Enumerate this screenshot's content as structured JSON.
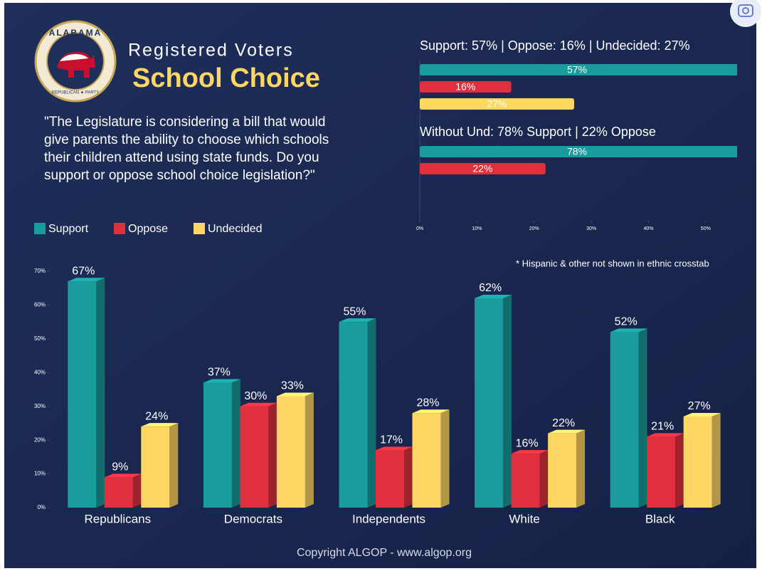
{
  "logo": {
    "top": "ALABAMA",
    "bottom": "REPUBLICAN ★ PARTY"
  },
  "header": {
    "kicker": "Registered Voters",
    "title": "School Choice"
  },
  "question": [
    "\"The Legislature is considering a bill that would",
    "give parents the ability to choose which schools",
    "their children attend using state funds. Do you",
    "support or oppose school choice legislation?\""
  ],
  "footer": "Copyright ALGOP -  www.algop.org",
  "chart_data": [
    {
      "type": "hbar",
      "groups": [
        {
          "title": "Support: 57% | Oppose: 16% | Undecided: 27%",
          "values": [
            57,
            16,
            27
          ],
          "value_labels": [
            "57%",
            "16%",
            "27%"
          ],
          "colors": [
            "#1a9c9c",
            "#e0303e",
            "#fdd663"
          ]
        },
        {
          "title": "Without Und: 78% Support | 22% Oppose",
          "values": [
            78,
            22
          ],
          "value_labels": [
            "78%",
            "22%"
          ],
          "colors": [
            "#1a9c9c",
            "#e0303e"
          ]
        }
      ],
      "xlim": [
        0,
        55
      ],
      "xticks": [
        {
          "value": 0,
          "label": "0%"
        },
        {
          "value": 10,
          "label": "10%"
        },
        {
          "value": 20,
          "label": "20%"
        },
        {
          "value": 30,
          "label": "30%"
        },
        {
          "value": 40,
          "label": "40%"
        },
        {
          "value": 50,
          "label": "50%"
        }
      ]
    },
    {
      "type": "bar3d",
      "categories": [
        "Republicans",
        "Democrats",
        "Independents",
        "White",
        "Black"
      ],
      "series": [
        {
          "name": "Support",
          "color": "#1a9c9c",
          "values": [
            67,
            37,
            55,
            62,
            52
          ],
          "value_labels": [
            "67%",
            "37%",
            "55%",
            "62%",
            "52%"
          ]
        },
        {
          "name": "Oppose",
          "color": "#e0303e",
          "values": [
            9,
            30,
            17,
            16,
            21
          ],
          "value_labels": [
            "9%",
            "30%",
            "17%",
            "16%",
            "21%"
          ]
        },
        {
          "name": "Undecided",
          "color": "#fdd663",
          "values": [
            24,
            33,
            28,
            22,
            27
          ],
          "value_labels": [
            "24%",
            "33%",
            "28%",
            "22%",
            "27%"
          ]
        }
      ],
      "ylim": [
        0,
        70
      ],
      "yticks": [
        {
          "value": 0,
          "label": "0%"
        },
        {
          "value": 10,
          "label": "10%"
        },
        {
          "value": 20,
          "label": "20%"
        },
        {
          "value": 30,
          "label": "30%"
        },
        {
          "value": 40,
          "label": "40%"
        },
        {
          "value": 50,
          "label": "50%"
        },
        {
          "value": 60,
          "label": "60%"
        },
        {
          "value": 70,
          "label": "70%"
        }
      ],
      "legend": "top-left",
      "note": "* Hispanic & other not shown in ethnic crosstab"
    }
  ]
}
